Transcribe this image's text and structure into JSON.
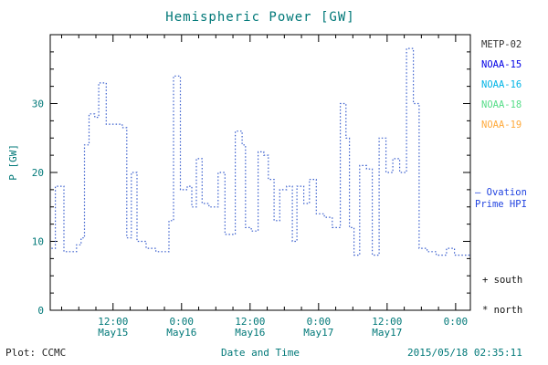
{
  "title": "Hemispheric Power [GW]",
  "colors": {
    "teal_text": "#007878",
    "axis": "#000000",
    "line": "#3a5fcd"
  },
  "legend": {
    "satellites": [
      {
        "label": "METP-02",
        "color": "#303030"
      },
      {
        "label": "NOAA-15",
        "color": "#0000e6"
      },
      {
        "label": "NOAA-16",
        "color": "#00b4e6"
      },
      {
        "label": "NOAA-18",
        "color": "#55dd88"
      },
      {
        "label": "NOAA-19",
        "color": "#ffaa3c"
      }
    ],
    "ovation_line1": "— Ovation",
    "ovation_line2": "Prime HPI",
    "south_key": "+ south",
    "north_key": "* north"
  },
  "footer": {
    "plot_credit": "Plot: CCMC",
    "xlabel": "Date and Time",
    "timestamp": "2015/05/18 02:35:11"
  },
  "chart_data": {
    "type": "line",
    "subtype": "step",
    "dash": "dotted",
    "title": "Hemispheric Power [GW]",
    "xlabel": "Date and Time",
    "ylabel": "P [GW]",
    "x_unit": "hours since 2015-05-15 00:00",
    "xlim": [
      1.0,
      74.58
    ],
    "ylim": [
      0,
      40
    ],
    "line_color": "#3a5fcd",
    "grid": false,
    "y_ticks": [
      0,
      10,
      20,
      30
    ],
    "y_minor_step": 2.5,
    "x_minor_step": 3,
    "x_ticks": [
      {
        "h": 12,
        "time": "12:00",
        "date": "May15"
      },
      {
        "h": 24,
        "time": "0:00",
        "date": "May16"
      },
      {
        "h": 36,
        "time": "12:00",
        "date": "May16"
      },
      {
        "h": 48,
        "time": "0:00",
        "date": "May17"
      },
      {
        "h": 60,
        "time": "12:00",
        "date": "May17"
      },
      {
        "h": 72,
        "time": "0:00",
        "date": ""
      }
    ],
    "points": [
      [
        1.2,
        9
      ],
      [
        1.9,
        18
      ],
      [
        3.4,
        8.5
      ],
      [
        5.6,
        9.5
      ],
      [
        6.4,
        10.5
      ],
      [
        7.0,
        24
      ],
      [
        7.8,
        28.5
      ],
      [
        8.8,
        28
      ],
      [
        9.5,
        33
      ],
      [
        10.8,
        27
      ],
      [
        13.0,
        27
      ],
      [
        13.6,
        26.5
      ],
      [
        14.4,
        10.5
      ],
      [
        15.2,
        20
      ],
      [
        16.2,
        10
      ],
      [
        17.8,
        9
      ],
      [
        19.5,
        8.5
      ],
      [
        21.8,
        13
      ],
      [
        22.6,
        34
      ],
      [
        23.8,
        17.5
      ],
      [
        25.0,
        18
      ],
      [
        25.8,
        15
      ],
      [
        26.6,
        22
      ],
      [
        27.6,
        15.5
      ],
      [
        28.8,
        15
      ],
      [
        30.4,
        20
      ],
      [
        31.6,
        11
      ],
      [
        33.4,
        26
      ],
      [
        34.6,
        24
      ],
      [
        35.2,
        12
      ],
      [
        36.2,
        11.5
      ],
      [
        37.4,
        23
      ],
      [
        38.4,
        22.5
      ],
      [
        39.2,
        19
      ],
      [
        40.2,
        13
      ],
      [
        41.2,
        17.5
      ],
      [
        42.4,
        18
      ],
      [
        43.4,
        10
      ],
      [
        44.2,
        18
      ],
      [
        45.4,
        15.5
      ],
      [
        46.4,
        19
      ],
      [
        47.6,
        14
      ],
      [
        49.0,
        13.5
      ],
      [
        50.4,
        12
      ],
      [
        51.8,
        30
      ],
      [
        52.8,
        25
      ],
      [
        53.4,
        12
      ],
      [
        54.2,
        8
      ],
      [
        55.2,
        21
      ],
      [
        56.4,
        20.5
      ],
      [
        57.4,
        8
      ],
      [
        58.6,
        25
      ],
      [
        59.8,
        20
      ],
      [
        61.0,
        22
      ],
      [
        62.2,
        20
      ],
      [
        63.4,
        38
      ],
      [
        64.6,
        30
      ],
      [
        65.6,
        9
      ],
      [
        67.0,
        8.5
      ],
      [
        68.6,
        8
      ],
      [
        70.4,
        9
      ],
      [
        71.8,
        8
      ],
      [
        74.58,
        8
      ]
    ]
  }
}
